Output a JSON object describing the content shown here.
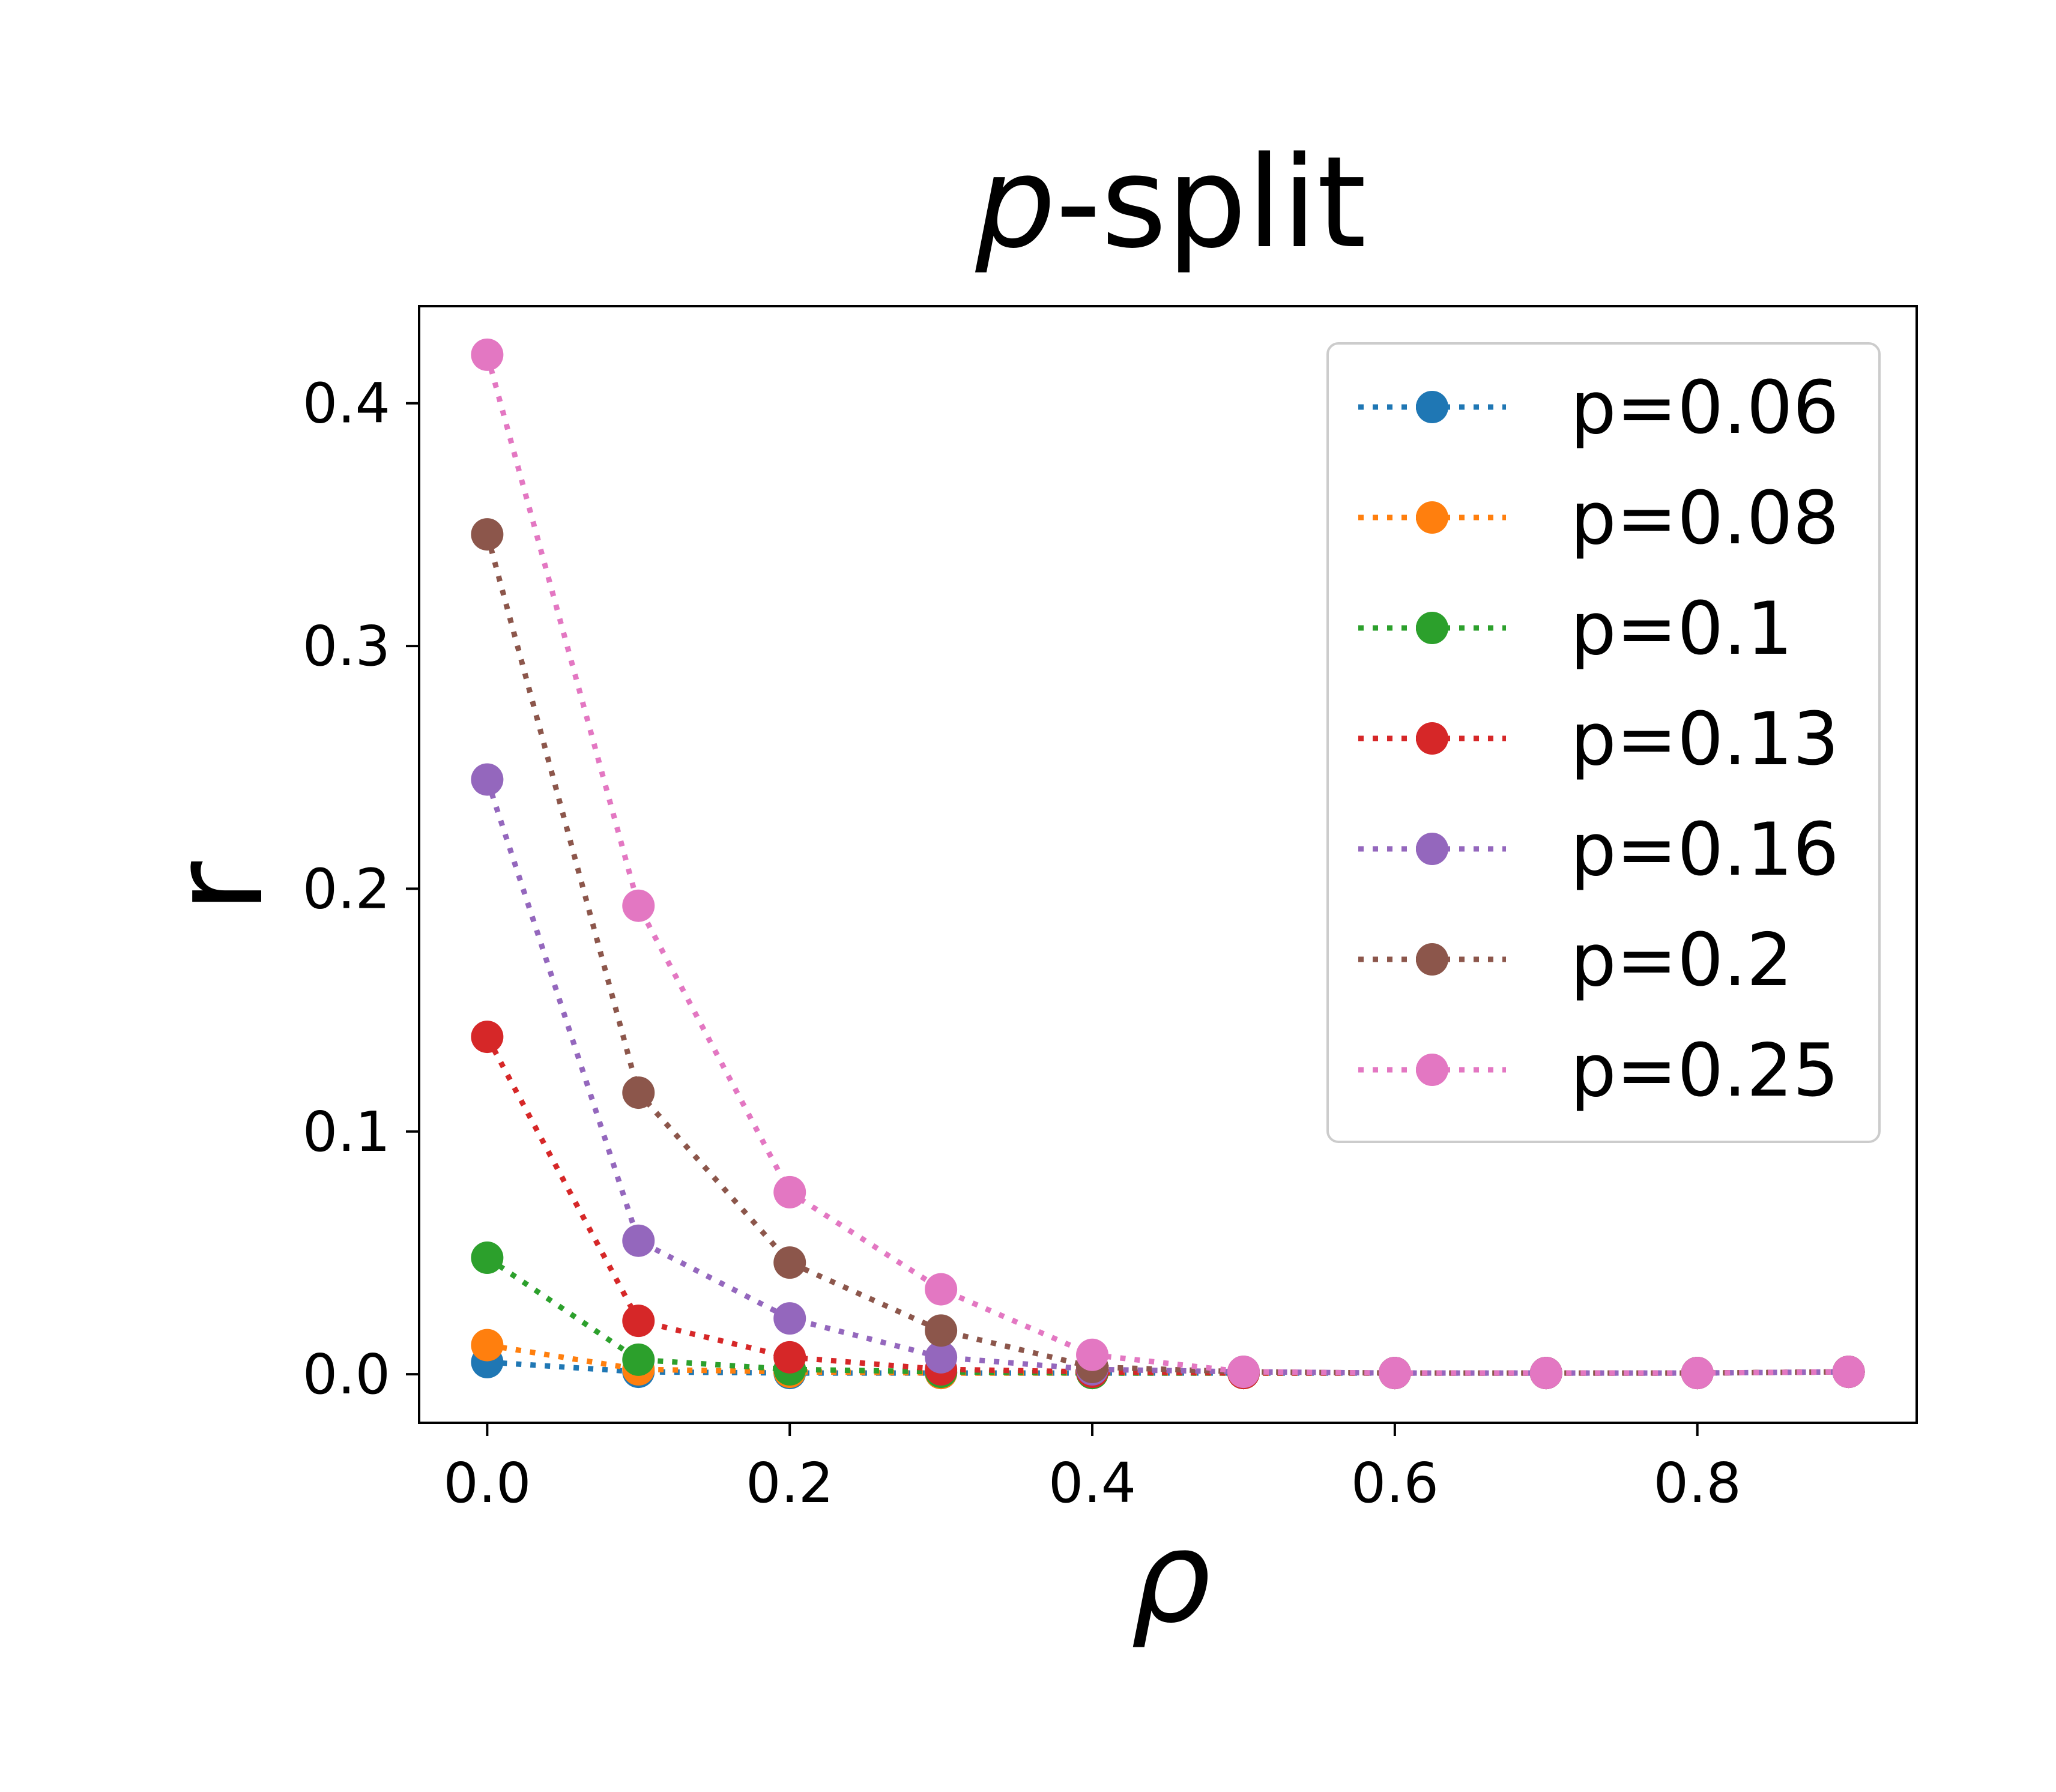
{
  "chart_data": {
    "type": "line",
    "title": {
      "italic": "p",
      "rest": "-split"
    },
    "xlabel": "ρ",
    "ylabel": "r",
    "xlim": [
      -0.045,
      0.945
    ],
    "ylim": [
      -0.02,
      0.44
    ],
    "x": [
      0.0,
      0.1,
      0.2,
      0.3,
      0.4,
      0.5,
      0.6,
      0.7,
      0.8,
      0.9
    ],
    "x_ticks": [
      0.0,
      0.2,
      0.4,
      0.6,
      0.8
    ],
    "x_tick_labels": [
      "0.0",
      "0.2",
      "0.4",
      "0.6",
      "0.8"
    ],
    "y_ticks": [
      0.0,
      0.1,
      0.2,
      0.3,
      0.4
    ],
    "y_tick_labels": [
      "0.0",
      "0.1",
      "0.2",
      "0.3",
      "0.4"
    ],
    "grid": false,
    "legend_position": "top-right",
    "line_style": "dotted",
    "marker": "circle",
    "series": [
      {
        "name": "p=0.06",
        "color": "#1f77b4",
        "values": [
          0.005,
          0.001,
          0.0005,
          0.0005,
          0.0005,
          0.0005,
          0.0005,
          0.0005,
          0.0005,
          0.001
        ]
      },
      {
        "name": "p=0.08",
        "color": "#ff7f0e",
        "values": [
          0.012,
          0.002,
          0.001,
          0.0005,
          0.0005,
          0.0005,
          0.0005,
          0.0005,
          0.0005,
          0.001
        ]
      },
      {
        "name": "p=0.1",
        "color": "#2ca02c",
        "values": [
          0.048,
          0.006,
          0.002,
          0.001,
          0.0005,
          0.0005,
          0.0005,
          0.0005,
          0.0005,
          0.001
        ]
      },
      {
        "name": "p=0.13",
        "color": "#d62728",
        "values": [
          0.139,
          0.022,
          0.007,
          0.002,
          0.001,
          0.0005,
          0.0005,
          0.0005,
          0.0005,
          0.001
        ]
      },
      {
        "name": "p=0.16",
        "color": "#9467bd",
        "values": [
          0.245,
          0.055,
          0.023,
          0.007,
          0.002,
          0.001,
          0.0005,
          0.0005,
          0.0005,
          0.001
        ]
      },
      {
        "name": "p=0.2",
        "color": "#8c564b",
        "values": [
          0.346,
          0.116,
          0.046,
          0.018,
          0.003,
          0.001,
          0.0005,
          0.0005,
          0.0005,
          0.001
        ]
      },
      {
        "name": "p=0.25",
        "color": "#e377c2",
        "values": [
          0.42,
          0.193,
          0.075,
          0.035,
          0.008,
          0.001,
          0.0005,
          0.0005,
          0.0005,
          0.001
        ]
      }
    ]
  }
}
